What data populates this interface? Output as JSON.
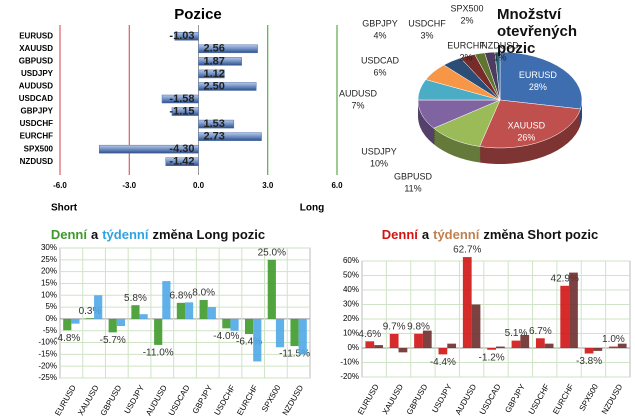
{
  "chart_data": [
    {
      "type": "hbar",
      "title": "Pozice",
      "categories": [
        "EURUSD",
        "XAUUSD",
        "GBPUSD",
        "USDJPY",
        "AUDUSD",
        "USDCAD",
        "GBPJPY",
        "USDCHF",
        "EURCHF",
        "SPX500",
        "NZDUSD"
      ],
      "values": [
        -1.03,
        2.56,
        1.87,
        1.12,
        2.5,
        -1.58,
        -1.15,
        1.53,
        2.73,
        -4.3,
        -1.42
      ],
      "value_labels": [
        "-1.03",
        "2.56",
        "1.87",
        "1.12",
        "2.50",
        "-1.58",
        "-1.15",
        "1.53",
        "2.73",
        "-4.30",
        "-1.42"
      ],
      "color": "#4f72ad",
      "xlim": [
        -6,
        6
      ],
      "xticks": [
        {
          "value": -6,
          "label": "-6.0"
        },
        {
          "value": -3,
          "label": "-3.0"
        },
        {
          "value": 0,
          "label": "0.0"
        },
        {
          "value": 3,
          "label": "3.0"
        },
        {
          "value": 6,
          "label": "6.0"
        }
      ],
      "xlabel_left": "Short",
      "xlabel_right": "Long"
    },
    {
      "type": "pie",
      "title": "Množství otevřených pozic",
      "categories": [
        "EURUSD",
        "XAUUSD",
        "GBPUSD",
        "USDJPY",
        "AUDUSD",
        "USDCAD",
        "GBPJPY",
        "USDCHF",
        "EURCHF",
        "SPX500",
        "NZDUSD"
      ],
      "values": [
        28,
        26,
        11,
        10,
        7,
        6,
        4,
        3,
        2,
        2,
        1
      ],
      "value_labels": [
        "28%",
        "26%",
        "11%",
        "10%",
        "7%",
        "6%",
        "4%",
        "3%",
        "2%",
        "2%",
        "1%"
      ],
      "colors": [
        "#3e6db0",
        "#c0504d",
        "#9bbb59",
        "#8064a2",
        "#4bacc6",
        "#f79646",
        "#2c4d75",
        "#772c2a",
        "#5f7530",
        "#4d3b62",
        "#276a7c"
      ]
    },
    {
      "type": "groupbar",
      "title_connector": "a",
      "title_rest": "změna Long pozic",
      "categories": [
        "EURUSD",
        "XAUUSD",
        "GBPUSD",
        "USDJPY",
        "AUDUSD",
        "USDCAD",
        "GBPJPY",
        "USDCHF",
        "EURCHF",
        "SPX500",
        "NZDUSD"
      ],
      "series": [
        {
          "name": "Denní",
          "color": "#3f9a2c",
          "values": [
            -4.8,
            0.3,
            -5.7,
            5.8,
            -11.0,
            6.8,
            8.0,
            -4.0,
            -6.4,
            25.0,
            -11.5
          ],
          "value_labels": [
            "-4.8%",
            "0.3%",
            "-5.7%",
            "5.8%",
            "-11.0%",
            "6.8%",
            "8.0%",
            "-4.0%",
            "-6.4%",
            "25.0%",
            "-11.5%"
          ]
        },
        {
          "name": "týdenní",
          "color": "#4fa7e8",
          "values": [
            -2,
            10,
            -3,
            2,
            16,
            7,
            5,
            -5,
            -18,
            -12,
            -15
          ]
        }
      ],
      "ylim": [
        -25,
        30
      ],
      "yticks": [
        {
          "value": -25,
          "label": "-25%"
        },
        {
          "value": -20,
          "label": "-20%"
        },
        {
          "value": -15,
          "label": "-15%"
        },
        {
          "value": -10,
          "label": "-10%"
        },
        {
          "value": -5,
          "label": "-5%"
        },
        {
          "value": 0,
          "label": "0%"
        },
        {
          "value": 5,
          "label": "5%"
        },
        {
          "value": 10,
          "label": "10%"
        },
        {
          "value": 15,
          "label": "15%"
        },
        {
          "value": 20,
          "label": "20%"
        },
        {
          "value": 25,
          "label": "25%"
        },
        {
          "value": 30,
          "label": "30%"
        }
      ]
    },
    {
      "type": "groupbar",
      "title_connector": "a",
      "title_rest": "změna Short pozic",
      "categories": [
        "EURUSD",
        "XAUUSD",
        "GBPUSD",
        "USDJPY",
        "AUDUSD",
        "USDCAD",
        "GBPJPY",
        "USDCHF",
        "EURCHF",
        "SPX500",
        "NZDUSD"
      ],
      "series": [
        {
          "name": "Denní",
          "color": "#d01414",
          "values": [
            4.6,
            9.7,
            9.8,
            -4.4,
            62.7,
            -1.2,
            5.1,
            6.7,
            42.9,
            -3.8,
            1.0
          ],
          "value_labels": [
            "4.6%",
            "9.7%",
            "9.8%",
            "-4.4%",
            "62.7%",
            "-1.2%",
            "5.1%",
            "6.7%",
            "42.9%",
            "-3.8%",
            "1.0%"
          ]
        },
        {
          "name": "týdenní",
          "color": "#6e2e2e",
          "values": [
            2,
            -3,
            12,
            3,
            30,
            1,
            9,
            3,
            52,
            -2,
            3
          ]
        }
      ],
      "ylim": [
        -20,
        60
      ],
      "yticks": [
        {
          "value": -20,
          "label": "-20%"
        },
        {
          "value": -10,
          "label": "-10%"
        },
        {
          "value": 0,
          "label": "0%"
        },
        {
          "value": 10,
          "label": "10%"
        },
        {
          "value": 20,
          "label": "20%"
        },
        {
          "value": 30,
          "label": "30%"
        },
        {
          "value": 40,
          "label": "40%"
        },
        {
          "value": 50,
          "label": "50%"
        },
        {
          "value": 60,
          "label": "60%"
        }
      ]
    }
  ]
}
